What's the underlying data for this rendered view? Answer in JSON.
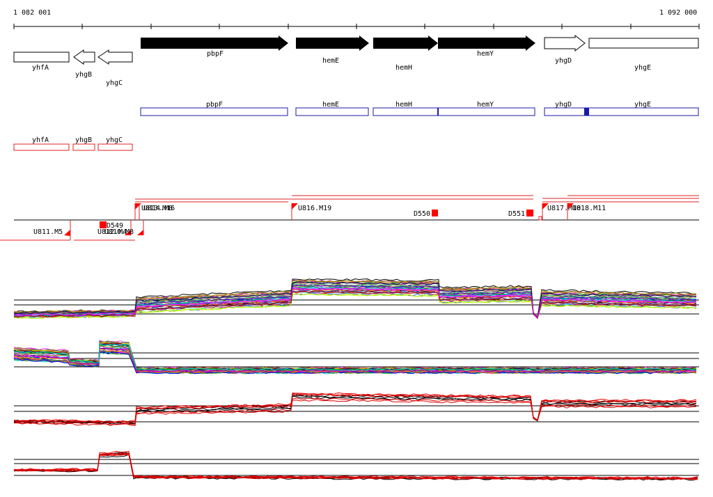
{
  "ruler": {
    "start_label": "1 082 001",
    "end_label": "1 092 000"
  },
  "genes_arrows": [
    {
      "label": "yhfA",
      "style": "open",
      "dir": "none"
    },
    {
      "label": "yhgB",
      "style": "open",
      "dir": "left"
    },
    {
      "label": "yhgC",
      "style": "open",
      "dir": "left"
    },
    {
      "label": "pbpF",
      "style": "filled",
      "dir": "right"
    },
    {
      "label": "hemE",
      "style": "filled",
      "dir": "right"
    },
    {
      "label": "hemH",
      "style": "filled",
      "dir": "right"
    },
    {
      "label": "hemY",
      "style": "filled",
      "dir": "right"
    },
    {
      "label": "yhgD",
      "style": "open",
      "dir": "right"
    },
    {
      "label": "yhgE",
      "style": "open",
      "dir": "none"
    }
  ],
  "blue_track": [
    {
      "label": "pbpF"
    },
    {
      "label": "hemE"
    },
    {
      "label": "hemH"
    },
    {
      "label": "hemY"
    },
    {
      "label": "yhgD"
    },
    {
      "label": "yhgE"
    }
  ],
  "red_track": [
    {
      "label": "yhfA"
    },
    {
      "label": "yhgB"
    },
    {
      "label": "yhgC"
    }
  ],
  "upper_features": [
    "U813.M16",
    "U814.M8",
    "U816.M19",
    "D550",
    "D551",
    "U817.M10",
    "U818.M11"
  ],
  "lower_features": [
    "U811.M5",
    "D549",
    "U812.M4",
    "U810.M8"
  ],
  "colors": {
    "gene_fill": "#000000",
    "blue_track": "#1a1aa8",
    "red_track": "#e02020",
    "feature_red": "#ff0000",
    "profile_black": "#000000",
    "profile_red": "#e00000"
  }
}
